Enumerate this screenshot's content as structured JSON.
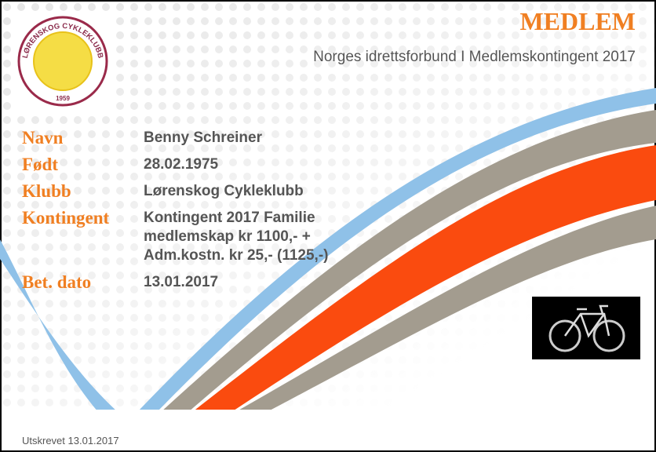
{
  "header": {
    "title": "MEDLEM",
    "subtitle": "Norges idrettsforbund I Medlemskontingent 2017"
  },
  "logo": {
    "name": "LØRENSKOG CYKLEKLUBB",
    "year": "1959"
  },
  "fields": [
    {
      "label": "Navn",
      "lines": [
        "Benny Schreiner"
      ]
    },
    {
      "label": "Født",
      "lines": [
        "28.02.1975"
      ]
    },
    {
      "label": "Klubb",
      "lines": [
        "Lørenskog Cykleklubb"
      ]
    },
    {
      "label": "Kontingent",
      "lines": [
        "Kontingent 2017 Familie",
        "medlemskap kr 1100,- +",
        "Adm.kostn. kr 25,- (1125,-)"
      ]
    },
    {
      "label": "Bet. dato",
      "lines": [
        "13.01.2017"
      ]
    }
  ],
  "footer": "Utskrevet 13.01.2017"
}
